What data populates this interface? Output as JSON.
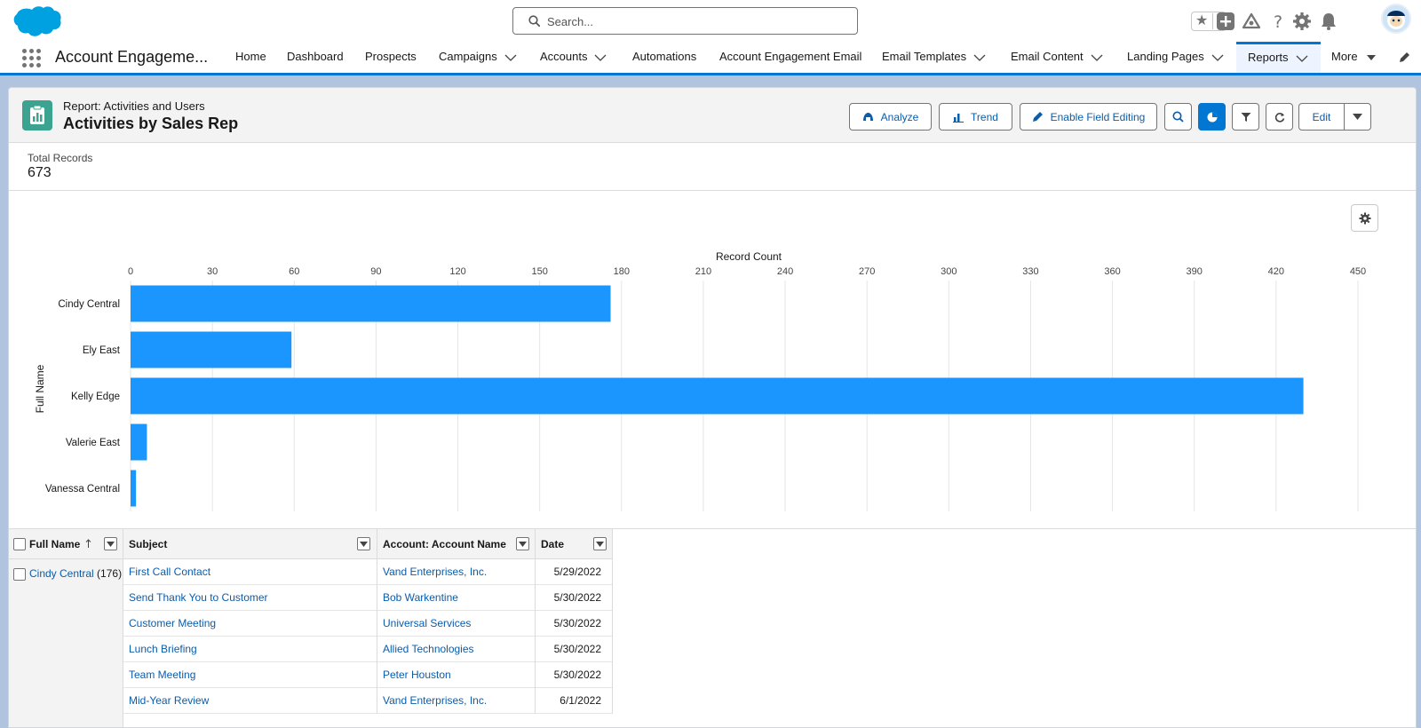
{
  "header": {
    "search_placeholder": "Search..."
  },
  "nav": {
    "app_name": "Account Engageme...",
    "items": [
      {
        "label": "Home"
      },
      {
        "label": "Dashboard"
      },
      {
        "label": "Prospects"
      },
      {
        "label": "Campaigns"
      },
      {
        "label": "Accounts"
      },
      {
        "label": "Automations"
      },
      {
        "label": "Account Engagement Email"
      },
      {
        "label": "Email Templates"
      },
      {
        "label": "Email Content"
      },
      {
        "label": "Landing Pages"
      },
      {
        "label": "Reports"
      },
      {
        "label": "More"
      }
    ]
  },
  "report": {
    "subtitle": "Report: Activities and Users",
    "title": "Activities by Sales Rep",
    "buttons": {
      "analyze": "Analyze",
      "trend": "Trend",
      "enable_field_editing": "Enable Field Editing",
      "edit": "Edit"
    },
    "summary": {
      "label": "Total Records",
      "value": "673"
    }
  },
  "chart_data": {
    "type": "bar",
    "orientation": "horizontal",
    "title": "Record Count",
    "xlabel": "Record Count",
    "ylabel": "Full Name",
    "categories": [
      "Cindy Central",
      "Ely East",
      "Kelly Edge",
      "Valerie East",
      "Vanessa Central"
    ],
    "values": [
      176,
      59,
      430,
      6,
      2
    ],
    "xlim": [
      0,
      450
    ],
    "ticks": [
      0,
      30,
      60,
      90,
      120,
      150,
      180,
      210,
      240,
      270,
      300,
      330,
      360,
      390,
      420,
      450
    ],
    "bar_color": "#1b96ff"
  },
  "table": {
    "columns": [
      "Full Name",
      "Subject",
      "Account: Account Name",
      "Date"
    ],
    "group": {
      "name": "Cindy Central",
      "count": "(176)"
    },
    "rows": [
      {
        "subject": "First Call Contact",
        "account": "Vand Enterprises, Inc.",
        "date": "5/29/2022"
      },
      {
        "subject": "Send Thank You to Customer",
        "account": "Bob Warkentine",
        "date": "5/30/2022"
      },
      {
        "subject": "Customer Meeting",
        "account": "Universal Services",
        "date": "5/30/2022"
      },
      {
        "subject": "Lunch Briefing",
        "account": "Allied Technologies",
        "date": "5/30/2022"
      },
      {
        "subject": "Team Meeting",
        "account": "Peter Houston",
        "date": "5/30/2022"
      },
      {
        "subject": "Mid-Year Review",
        "account": "Vand Enterprises, Inc.",
        "date": "6/1/2022"
      }
    ]
  },
  "colors": {
    "brand": "#0176d3",
    "link": "#0b5cab",
    "report_icon": "#3ba38f",
    "bar": "#1b96ff"
  }
}
